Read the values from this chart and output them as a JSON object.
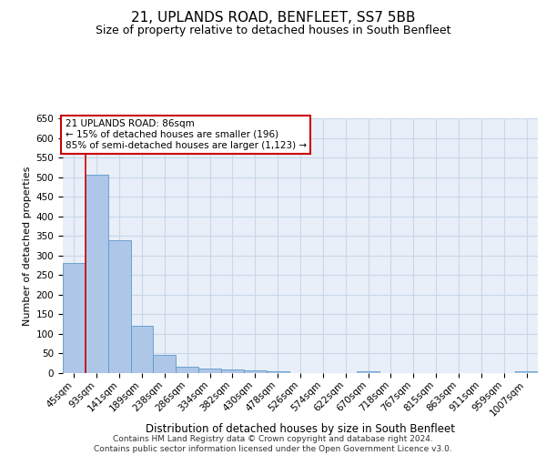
{
  "title": "21, UPLANDS ROAD, BENFLEET, SS7 5BB",
  "subtitle": "Size of property relative to detached houses in South Benfleet",
  "xlabel": "Distribution of detached houses by size in South Benfleet",
  "ylabel": "Number of detached properties",
  "footer1": "Contains HM Land Registry data © Crown copyright and database right 2024.",
  "footer2": "Contains public sector information licensed under the Open Government Licence v3.0.",
  "categories": [
    "45sqm",
    "93sqm",
    "141sqm",
    "189sqm",
    "238sqm",
    "286sqm",
    "334sqm",
    "382sqm",
    "430sqm",
    "478sqm",
    "526sqm",
    "574sqm",
    "622sqm",
    "670sqm",
    "718sqm",
    "767sqm",
    "815sqm",
    "863sqm",
    "911sqm",
    "959sqm",
    "1007sqm"
  ],
  "values": [
    280,
    505,
    340,
    120,
    47,
    17,
    12,
    9,
    6,
    5,
    0,
    0,
    0,
    5,
    0,
    0,
    0,
    0,
    0,
    0,
    5
  ],
  "bar_color": "#aec6e8",
  "bar_edge_color": "#5a9ac8",
  "grid_color": "#c8d8e8",
  "background_color": "#e8eff8",
  "annotation_text": "21 UPLANDS ROAD: 86sqm\n← 15% of detached houses are smaller (196)\n85% of semi-detached houses are larger (1,123) →",
  "annotation_box_color": "#ffffff",
  "annotation_box_edge": "#cc0000",
  "vline_color": "#cc0000",
  "ylim": [
    0,
    650
  ],
  "yticks": [
    0,
    50,
    100,
    150,
    200,
    250,
    300,
    350,
    400,
    450,
    500,
    550,
    600,
    650
  ],
  "title_fontsize": 11,
  "subtitle_fontsize": 9,
  "ylabel_fontsize": 8,
  "xlabel_fontsize": 8.5,
  "tick_fontsize": 7.5,
  "annotation_fontsize": 7.5,
  "footer_fontsize": 6.5
}
